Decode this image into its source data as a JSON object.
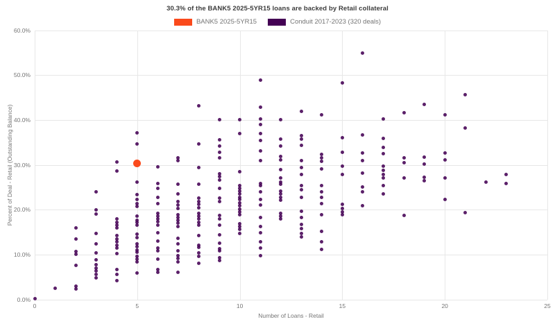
{
  "title": "30.3% of the BANK5 2025-5YR15 loans are backed by Retail collateral",
  "colors": {
    "bank5": "#fa4a1c",
    "conduit": "#440154",
    "grid": "#e7e7e7",
    "title_text": "#3c3c3c",
    "axis_text": "#757575"
  },
  "legend": [
    {
      "label": "BANK5 2025-5YR15",
      "color": "#fa4a1c"
    },
    {
      "label": "Conduit 2017-2023 (320 deals)",
      "color": "#440154"
    }
  ],
  "chart_data": {
    "type": "scatter",
    "title": "30.3% of the BANK5 2025-5YR15 loans are backed by Retail collateral",
    "xlabel": "Number of Loans - Retail",
    "ylabel": "Percent of Deal - Retail (Outstanding Balance)",
    "xlim": [
      0,
      25
    ],
    "ylim": [
      0,
      60
    ],
    "x_ticks": [
      0,
      5,
      10,
      15,
      20,
      25
    ],
    "x_tick_labels": [
      "0",
      "5",
      "10",
      "15",
      "20",
      "25"
    ],
    "y_ticks": [
      0,
      10,
      20,
      30,
      40,
      50,
      60
    ],
    "y_tick_labels": [
      "0.0%",
      "10.0%",
      "20.0%",
      "30.0%",
      "40.0%",
      "50.0%",
      "60.0%"
    ],
    "grid": true,
    "legend_position": "top-center",
    "series": [
      {
        "name": "BANK5 2025-5YR15",
        "color": "#fa4a1c",
        "marker_size": 11,
        "points": [
          [
            5,
            30.3
          ]
        ]
      },
      {
        "name": "Conduit 2017-2023 (320 deals)",
        "color": "#440154",
        "marker_size": 5,
        "points": [
          [
            0,
            0.2
          ],
          [
            1,
            2.5
          ],
          [
            2,
            16
          ],
          [
            2,
            13.4
          ],
          [
            2,
            10.6
          ],
          [
            2,
            10
          ],
          [
            2,
            7.6
          ],
          [
            2,
            3
          ],
          [
            2,
            2.3
          ],
          [
            3,
            24
          ],
          [
            3,
            20
          ],
          [
            3,
            19
          ],
          [
            3,
            14.7
          ],
          [
            3,
            12.4
          ],
          [
            3,
            10.3
          ],
          [
            3,
            8.8
          ],
          [
            3,
            7.8
          ],
          [
            3,
            7
          ],
          [
            3,
            6.3
          ],
          [
            3,
            5.6
          ],
          [
            3,
            4.8
          ],
          [
            4,
            30.6
          ],
          [
            4,
            28.6
          ],
          [
            4,
            17.9
          ],
          [
            4,
            17.2
          ],
          [
            4,
            16.5
          ],
          [
            4,
            16
          ],
          [
            4,
            14.3
          ],
          [
            4,
            13.5
          ],
          [
            4,
            12.8
          ],
          [
            4,
            12.1
          ],
          [
            4,
            11.4
          ],
          [
            4,
            10.2
          ],
          [
            4,
            6.6
          ],
          [
            4,
            5.6
          ],
          [
            4,
            4.2
          ],
          [
            5,
            37.1
          ],
          [
            5,
            34.7
          ],
          [
            5,
            26.2
          ],
          [
            5,
            23.3
          ],
          [
            5,
            22.3
          ],
          [
            5,
            21.4
          ],
          [
            5,
            20.7
          ],
          [
            5,
            18.6
          ],
          [
            5,
            17.7
          ],
          [
            5,
            17.2
          ],
          [
            5,
            16.5
          ],
          [
            5,
            14.6
          ],
          [
            5,
            13.7
          ],
          [
            5,
            12.4
          ],
          [
            5,
            11.7
          ],
          [
            5,
            11
          ],
          [
            5,
            10.5
          ],
          [
            5,
            9.6
          ],
          [
            5,
            9
          ],
          [
            5,
            8.4
          ],
          [
            5,
            5.8
          ],
          [
            6,
            29.6
          ],
          [
            6,
            25.9
          ],
          [
            6,
            24.8
          ],
          [
            6,
            22.8
          ],
          [
            6,
            21.4
          ],
          [
            6,
            19.2
          ],
          [
            6,
            18.6
          ],
          [
            6,
            17.9
          ],
          [
            6,
            17.3
          ],
          [
            6,
            16.6
          ],
          [
            6,
            14.9
          ],
          [
            6,
            13
          ],
          [
            6,
            11.4
          ],
          [
            6,
            10.9
          ],
          [
            6,
            9
          ],
          [
            6,
            6.6
          ],
          [
            6,
            6.1
          ],
          [
            7,
            31.6
          ],
          [
            7,
            30.9
          ],
          [
            7,
            25.7
          ],
          [
            7,
            23.5
          ],
          [
            7,
            21.8
          ],
          [
            7,
            21
          ],
          [
            7,
            20.2
          ],
          [
            7,
            18.9
          ],
          [
            7,
            18.3
          ],
          [
            7,
            17.6
          ],
          [
            7,
            17
          ],
          [
            7,
            16.3
          ],
          [
            7,
            13.6
          ],
          [
            7,
            12.4
          ],
          [
            7,
            10.8
          ],
          [
            7,
            9.7
          ],
          [
            7,
            9.1
          ],
          [
            7,
            8.4
          ],
          [
            7,
            6
          ],
          [
            8,
            43.2
          ],
          [
            8,
            34.6
          ],
          [
            8,
            29.4
          ],
          [
            8,
            25.7
          ],
          [
            8,
            22.6
          ],
          [
            8,
            21.8
          ],
          [
            8,
            21.2
          ],
          [
            8,
            20.4
          ],
          [
            8,
            19.2
          ],
          [
            8,
            18.6
          ],
          [
            8,
            17.9
          ],
          [
            8,
            17.2
          ],
          [
            8,
            16.5
          ],
          [
            8,
            14.2
          ],
          [
            8,
            12.1
          ],
          [
            8,
            11.6
          ],
          [
            8,
            10.4
          ],
          [
            8,
            9.6
          ],
          [
            8,
            8
          ],
          [
            9,
            40.1
          ],
          [
            9,
            35.5
          ],
          [
            9,
            34.1
          ],
          [
            9,
            32.8
          ],
          [
            9,
            31.6
          ],
          [
            9,
            28
          ],
          [
            9,
            27.3
          ],
          [
            9,
            26.6
          ],
          [
            9,
            24.8
          ],
          [
            9,
            22.6
          ],
          [
            9,
            21.8
          ],
          [
            9,
            18.7
          ],
          [
            9,
            18
          ],
          [
            9,
            16.6
          ],
          [
            9,
            14.4
          ],
          [
            9,
            12.6
          ],
          [
            9,
            11.3
          ],
          [
            9,
            10.8
          ],
          [
            9,
            9.3
          ],
          [
            9,
            8.7
          ],
          [
            10,
            40.1
          ],
          [
            10,
            37
          ],
          [
            10,
            28.5
          ],
          [
            10,
            25.4
          ],
          [
            10,
            24.8
          ],
          [
            10,
            24.2
          ],
          [
            10,
            23.5
          ],
          [
            10,
            22.8
          ],
          [
            10,
            22.2
          ],
          [
            10,
            21.5
          ],
          [
            10,
            20.9
          ],
          [
            10,
            20.1
          ],
          [
            10,
            19.5
          ],
          [
            10,
            18.8
          ],
          [
            10,
            16.9
          ],
          [
            10,
            16.2
          ],
          [
            10,
            15.6
          ],
          [
            10,
            14.7
          ],
          [
            11,
            48.8
          ],
          [
            11,
            42.9
          ],
          [
            11,
            40.2
          ],
          [
            11,
            39
          ],
          [
            11,
            37
          ],
          [
            11,
            35.4
          ],
          [
            11,
            33.1
          ],
          [
            11,
            30.9
          ],
          [
            11,
            25.9
          ],
          [
            11,
            25.3
          ],
          [
            11,
            24
          ],
          [
            11,
            22.3
          ],
          [
            11,
            21
          ],
          [
            11,
            18.3
          ],
          [
            11,
            16.3
          ],
          [
            11,
            14.9
          ],
          [
            11,
            12.8
          ],
          [
            11,
            11.5
          ],
          [
            11,
            9.7
          ],
          [
            12,
            40.1
          ],
          [
            12,
            35.7
          ],
          [
            12,
            34.1
          ],
          [
            12,
            31.8
          ],
          [
            12,
            31.1
          ],
          [
            12,
            28.9
          ],
          [
            12,
            27
          ],
          [
            12,
            26.2
          ],
          [
            12,
            25.6
          ],
          [
            12,
            24.1
          ],
          [
            12,
            23.5
          ],
          [
            12,
            22.8
          ],
          [
            12,
            22.1
          ],
          [
            12,
            19.2
          ],
          [
            12,
            18.6
          ],
          [
            12,
            17.9
          ],
          [
            13,
            41.9
          ],
          [
            13,
            36.5
          ],
          [
            13,
            35.7
          ],
          [
            13,
            34.3
          ],
          [
            13,
            31
          ],
          [
            13,
            29.4
          ],
          [
            13,
            27.9
          ],
          [
            13,
            25.3
          ],
          [
            13,
            24.5
          ],
          [
            13,
            22.7
          ],
          [
            13,
            19.6
          ],
          [
            13,
            18.3
          ],
          [
            13,
            16.7
          ],
          [
            13,
            15.7
          ],
          [
            13,
            14.7
          ],
          [
            13,
            13.9
          ],
          [
            14,
            41.1
          ],
          [
            14,
            32.3
          ],
          [
            14,
            31.5
          ],
          [
            14,
            30.8
          ],
          [
            14,
            29.1
          ],
          [
            14,
            25.3
          ],
          [
            14,
            24
          ],
          [
            14,
            22.7
          ],
          [
            14,
            21.4
          ],
          [
            14,
            18.8
          ],
          [
            14,
            15.2
          ],
          [
            14,
            12.9
          ],
          [
            14,
            11.1
          ],
          [
            15,
            48.3
          ],
          [
            15,
            36
          ],
          [
            15,
            32.8
          ],
          [
            15,
            29.7
          ],
          [
            15,
            27.9
          ],
          [
            15,
            21.2
          ],
          [
            15,
            20.3
          ],
          [
            15,
            19.5
          ],
          [
            15,
            18.8
          ],
          [
            16,
            54.9
          ],
          [
            16,
            36.7
          ],
          [
            16,
            32.6
          ],
          [
            16,
            31
          ],
          [
            16,
            28.1
          ],
          [
            16,
            25
          ],
          [
            16,
            24
          ],
          [
            16,
            20.9
          ],
          [
            17,
            40.2
          ],
          [
            17,
            35.9
          ],
          [
            17,
            33.9
          ],
          [
            17,
            32.4
          ],
          [
            17,
            29.7
          ],
          [
            17,
            28.7
          ],
          [
            17,
            27.9
          ],
          [
            17,
            27.1
          ],
          [
            17,
            25.3
          ],
          [
            17,
            23.5
          ],
          [
            18,
            41.6
          ],
          [
            18,
            31.5
          ],
          [
            18,
            30.5
          ],
          [
            18,
            27.1
          ],
          [
            18,
            18.7
          ],
          [
            19,
            43.4
          ],
          [
            19,
            31.7
          ],
          [
            19,
            30.2
          ],
          [
            19,
            27.2
          ],
          [
            19,
            26.4
          ],
          [
            20,
            41.1
          ],
          [
            20,
            32.6
          ],
          [
            20,
            31.1
          ],
          [
            20,
            27
          ],
          [
            20,
            22.3
          ],
          [
            21,
            45.6
          ],
          [
            21,
            38.2
          ],
          [
            21,
            19.3
          ],
          [
            22,
            26.2
          ],
          [
            23,
            27.9
          ],
          [
            23,
            25.8
          ]
        ]
      }
    ]
  }
}
